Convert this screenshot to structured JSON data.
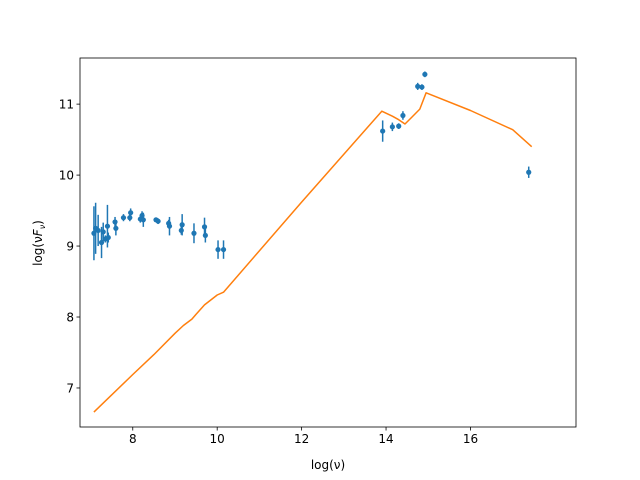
{
  "chart_data": {
    "type": "scatter",
    "title": "",
    "xlabel": "log(ν)",
    "ylabel_parts": [
      "log(ν",
      "F",
      "ν",
      ")"
    ],
    "xlim": [
      6.75,
      18.5
    ],
    "ylim": [
      6.45,
      11.65
    ],
    "xticks": [
      8,
      10,
      12,
      14,
      16
    ],
    "yticks": [
      7,
      8,
      9,
      10,
      11
    ],
    "grid": false,
    "colors": {
      "points": "#1f77b4",
      "model": "#ff7f0e"
    },
    "series": [
      {
        "kind": "errorbar",
        "points": [
          {
            "x": 7.08,
            "y": 9.18,
            "yerr": 0.38
          },
          {
            "x": 7.12,
            "y": 9.25,
            "yerr": 0.36
          },
          {
            "x": 7.18,
            "y": 9.22,
            "yerr": 0.22
          },
          {
            "x": 7.26,
            "y": 9.05,
            "yerr": 0.22
          },
          {
            "x": 7.3,
            "y": 9.2,
            "yerr": 0.13
          },
          {
            "x": 7.35,
            "y": 9.1,
            "yerr": 0.05
          },
          {
            "x": 7.4,
            "y": 9.28,
            "yerr": 0.3
          },
          {
            "x": 7.42,
            "y": 9.12,
            "yerr": 0.07
          },
          {
            "x": 7.58,
            "y": 9.34,
            "yerr": 0.07
          },
          {
            "x": 7.6,
            "y": 9.25,
            "yerr": 0.1
          },
          {
            "x": 7.78,
            "y": 9.4,
            "yerr": 0.05
          },
          {
            "x": 7.93,
            "y": 9.4,
            "yerr": 0.05
          },
          {
            "x": 7.95,
            "y": 9.47,
            "yerr": 0.06
          },
          {
            "x": 8.18,
            "y": 9.38,
            "yerr": 0.05
          },
          {
            "x": 8.22,
            "y": 9.43,
            "yerr": 0.06
          },
          {
            "x": 8.25,
            "y": 9.37,
            "yerr": 0.1
          },
          {
            "x": 8.55,
            "y": 9.37,
            "yerr": 0.03
          },
          {
            "x": 8.6,
            "y": 9.35,
            "yerr": 0.04
          },
          {
            "x": 8.85,
            "y": 9.32,
            "yerr": 0.05
          },
          {
            "x": 8.87,
            "y": 9.28,
            "yerr": 0.13
          },
          {
            "x": 9.15,
            "y": 9.22,
            "yerr": 0.06
          },
          {
            "x": 9.17,
            "y": 9.3,
            "yerr": 0.15
          },
          {
            "x": 9.45,
            "y": 9.18,
            "yerr": 0.14
          },
          {
            "x": 9.7,
            "y": 9.27,
            "yerr": 0.13
          },
          {
            "x": 9.72,
            "y": 9.15,
            "yerr": 0.1
          },
          {
            "x": 10.02,
            "y": 8.95,
            "yerr": 0.13
          },
          {
            "x": 10.15,
            "y": 8.95,
            "yerr": 0.13
          },
          {
            "x": 13.92,
            "y": 10.62,
            "yerr": 0.15
          },
          {
            "x": 14.15,
            "y": 10.68,
            "yerr": 0.06
          },
          {
            "x": 14.3,
            "y": 10.69,
            "yerr": 0.04
          },
          {
            "x": 14.4,
            "y": 10.84,
            "yerr": 0.06
          },
          {
            "x": 14.75,
            "y": 11.25,
            "yerr": 0.05
          },
          {
            "x": 14.85,
            "y": 11.24,
            "yerr": 0.04
          },
          {
            "x": 14.92,
            "y": 11.42,
            "yerr": 0.04
          },
          {
            "x": 17.38,
            "y": 10.04,
            "yerr": 0.08
          }
        ]
      },
      {
        "kind": "line",
        "x": [
          7.08,
          8.0,
          8.5,
          9.0,
          9.2,
          9.4,
          9.5,
          9.7,
          10.0,
          10.15,
          12.0,
          13.9,
          14.15,
          14.3,
          14.45,
          14.6,
          14.8,
          14.95,
          16.0,
          17.0,
          17.45
        ],
        "y": [
          6.66,
          7.19,
          7.47,
          7.77,
          7.88,
          7.97,
          8.04,
          8.17,
          8.31,
          8.35,
          9.62,
          10.9,
          10.83,
          10.78,
          10.72,
          10.81,
          10.93,
          11.16,
          10.91,
          10.64,
          10.4
        ]
      }
    ]
  }
}
